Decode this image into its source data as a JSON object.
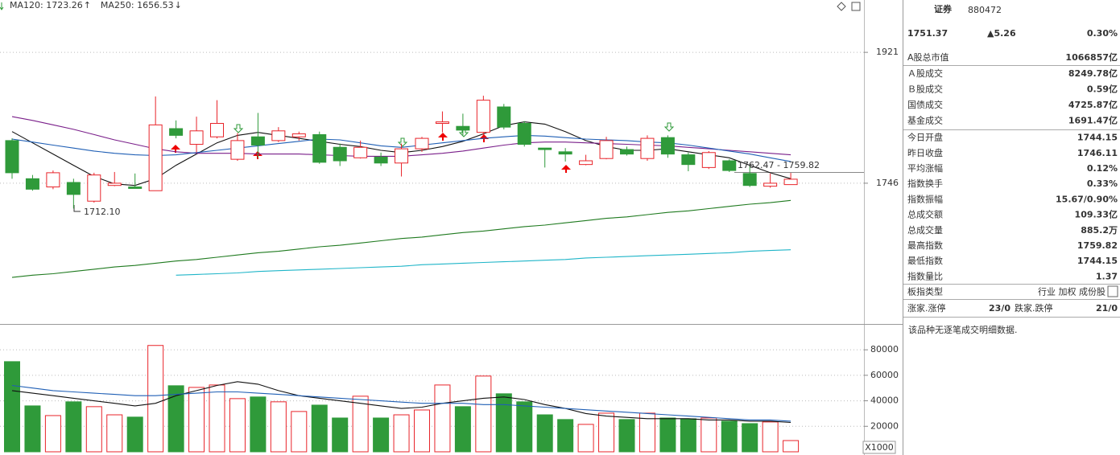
{
  "chart_data": [
    {
      "type": "candlestick",
      "up_color": "#e8242a",
      "down_color": "#2f9a3a",
      "ylim": [
        1561,
        1991
      ],
      "yticks": [
        1746,
        1921
      ],
      "grid": true,
      "open": [
        1803,
        1752,
        1741,
        1747,
        1722,
        1743,
        1741,
        1736,
        1819,
        1798,
        1808,
        1778,
        1808,
        1803,
        1808,
        1811,
        1794,
        1780,
        1781,
        1773,
        1792,
        1826,
        1822,
        1814,
        1848,
        1826,
        1793,
        1788,
        1771,
        1779,
        1791,
        1779,
        1807,
        1784,
        1767,
        1776,
        1759,
        1742,
        1744.15
      ],
      "high": [
        1806,
        1757,
        1763,
        1752,
        1760,
        1761,
        1759,
        1862,
        1830,
        1835,
        1857,
        1813,
        1840,
        1821,
        1815,
        1815,
        1799,
        1803,
        1787,
        1799,
        1808,
        1842,
        1839,
        1863,
        1852,
        1829,
        1793,
        1793,
        1784,
        1808,
        1795,
        1810,
        1810,
        1787,
        1789,
        1778,
        1770,
        1759,
        1759.82
      ],
      "low": [
        1752,
        1736,
        1738,
        1712.1,
        1720,
        1742,
        1739,
        1737,
        1806,
        1787,
        1806,
        1776,
        1780,
        1801,
        1803,
        1772,
        1769,
        1779,
        1769,
        1755,
        1788,
        1814,
        1810,
        1810,
        1818,
        1795,
        1767,
        1775,
        1770,
        1778,
        1783,
        1776,
        1780,
        1762,
        1765,
        1761,
        1741,
        1740,
        1744.15
      ],
      "close": [
        1760,
        1738,
        1760,
        1731,
        1757,
        1746,
        1739,
        1824,
        1810,
        1816,
        1826,
        1803,
        1797,
        1816,
        1812,
        1774,
        1776,
        1794,
        1773,
        1792,
        1806,
        1828,
        1817,
        1857,
        1821,
        1798,
        1791,
        1785,
        1776,
        1803,
        1785,
        1806,
        1785,
        1771,
        1787,
        1763,
        1743,
        1746,
        1751.37
      ],
      "series": [
        {
          "name": "MA120: 1723.26",
          "trend": "↑",
          "trend_color": "#e8242a",
          "label_color": "#333333",
          "color": "#1f7a1f",
          "values": [
            1620,
            1623,
            1625,
            1628,
            1631,
            1634,
            1636,
            1639,
            1642,
            1644,
            1647,
            1650,
            1653,
            1655,
            1658,
            1661,
            1663,
            1666,
            1669,
            1672,
            1674,
            1677,
            1680,
            1682,
            1685,
            1688,
            1690,
            1693,
            1696,
            1699,
            1701,
            1704,
            1707,
            1709,
            1712,
            1715,
            1718,
            1720,
            1723
          ]
        },
        {
          "name": "MA250: 1656.53",
          "trend": "↓",
          "trend_color": "#2f9a3a",
          "label_color": "#1fb5c8",
          "color": "#1fb5c8",
          "values": [
            null,
            null,
            null,
            null,
            null,
            null,
            null,
            null,
            1623,
            1624,
            1625,
            1626,
            1628,
            1629,
            1630,
            1631,
            1632,
            1633,
            1634,
            1635,
            1637,
            1638,
            1639,
            1640,
            1641,
            1642,
            1643,
            1644,
            1646,
            1647,
            1648,
            1649,
            1650,
            1651,
            1652,
            1653,
            1655,
            1656,
            1657
          ]
        },
        {
          "color": "#111111",
          "values": [
            1815,
            1800,
            1785,
            1770,
            1755,
            1745,
            1743,
            1752,
            1770,
            1785,
            1800,
            1810,
            1814,
            1810,
            1806,
            1802,
            1798,
            1795,
            1790,
            1787,
            1790,
            1795,
            1802,
            1812,
            1823,
            1828,
            1825,
            1815,
            1803,
            1795,
            1790,
            1790,
            1792,
            1788,
            1784,
            1780,
            1770,
            1760,
            1752
          ]
        },
        {
          "color": "#7a1f8a",
          "values": [
            1835,
            1830,
            1824,
            1818,
            1811,
            1804,
            1798,
            1792,
            1788,
            1786,
            1786,
            1786,
            1785,
            1785,
            1785,
            1784,
            1783,
            1782,
            1782,
            1782,
            1784,
            1786,
            1789,
            1793,
            1797,
            1800,
            1801,
            1801,
            1800,
            1799,
            1798,
            1797,
            1796,
            1794,
            1792,
            1790,
            1788,
            1786,
            1784
          ]
        },
        {
          "color": "#1f5fb5",
          "values": [
            1805,
            1801,
            1797,
            1793,
            1789,
            1786,
            1784,
            1783,
            1784,
            1787,
            1790,
            1793,
            1796,
            1799,
            1802,
            1805,
            1804,
            1800,
            1796,
            1794,
            1797,
            1800,
            1803,
            1806,
            1808,
            1810,
            1809,
            1807,
            1805,
            1804,
            1803,
            1801,
            1800,
            1797,
            1793,
            1789,
            1785,
            1780,
            1775
          ]
        }
      ],
      "annotations": [
        "1712.10",
        "1762.47 - 1759.82"
      ]
    },
    {
      "type": "bar",
      "up_color": "#e8242a",
      "down_color": "#2f9a3a",
      "ylim": [
        0,
        99000
      ],
      "yticks": [
        20000,
        40000,
        60000,
        80000
      ],
      "grid": true,
      "unit_label": "X1000",
      "values": [
        70700,
        36000,
        28400,
        39200,
        35400,
        29000,
        27200,
        83400,
        51800,
        50500,
        52400,
        41700,
        43000,
        39200,
        31600,
        36600,
        26500,
        43600,
        26500,
        29000,
        32800,
        52400,
        35400,
        59400,
        45500,
        39200,
        29000,
        25300,
        21500,
        30300,
        25300,
        30300,
        26500,
        25900,
        26500,
        24000,
        22100,
        23400,
        8800
      ],
      "series": [
        {
          "color": "#111111",
          "values": [
            48000,
            46000,
            44000,
            42000,
            40000,
            38000,
            36000,
            38000,
            44000,
            48000,
            52000,
            55000,
            53000,
            48000,
            44000,
            42000,
            40000,
            38000,
            36000,
            34000,
            35000,
            38000,
            40000,
            42000,
            43000,
            41000,
            37000,
            34000,
            30000,
            28000,
            27000,
            26000,
            26000,
            26000,
            25000,
            25000,
            24000,
            24000,
            23000
          ]
        },
        {
          "color": "#1f5fb5",
          "values": [
            52000,
            50000,
            48000,
            47000,
            46000,
            45000,
            44000,
            44000,
            45000,
            46000,
            47000,
            47000,
            46000,
            45000,
            44000,
            43000,
            42000,
            41000,
            40000,
            39000,
            38000,
            38000,
            38000,
            37000,
            37000,
            36000,
            35000,
            34000,
            33000,
            32000,
            31000,
            30000,
            29000,
            28000,
            27000,
            26000,
            25000,
            25000,
            24000
          ]
        }
      ]
    }
  ],
  "quote_panel": {
    "name": "证券",
    "code": "880472",
    "price": "1751.37",
    "change": "▲5.26",
    "change_pct": "0.30%",
    "groups": [
      [
        {
          "label": "A股总市值",
          "value": "1066857亿",
          "color": "#000"
        }
      ],
      [
        {
          "label": "Ａ股成交",
          "value": "8249.78亿",
          "color": "#000"
        },
        {
          "label": "Ｂ股成交",
          "value": "0.59亿",
          "color": "#000"
        },
        {
          "label": "国债成交",
          "value": "4725.87亿",
          "color": "#000"
        },
        {
          "label": "基金成交",
          "value": "1691.47亿",
          "color": "#000"
        }
      ],
      [
        {
          "label": "今日开盘",
          "value": "1744.15",
          "color": "#2f9a3a"
        },
        {
          "label": "昨日收盘",
          "value": "1746.11",
          "color": "#000"
        },
        {
          "label": "平均涨幅",
          "value": "0.12%",
          "color": "#e8242a"
        },
        {
          "label": "指数换手",
          "value": "0.33%",
          "color": "#000"
        },
        {
          "label": "指数振幅",
          "value": "15.67/0.90%",
          "color": "#000"
        },
        {
          "label": "总成交额",
          "value": "109.33亿",
          "color": "#000"
        },
        {
          "label": "总成交量",
          "value": "885.2万",
          "color": "#000"
        },
        {
          "label": "最高指数",
          "value": "1759.82",
          "color": "#e8242a"
        },
        {
          "label": "最低指数",
          "value": "1744.15",
          "color": "#2f9a3a"
        },
        {
          "label": "指数量比",
          "value": "1.37",
          "color": "#e8242a"
        }
      ],
      [
        {
          "label": "板指类型",
          "value": "行业 加权 成份股",
          "color": "#555"
        }
      ]
    ],
    "breadth": {
      "up_label": "涨家.涨停",
      "up_value": "23/0",
      "down_label": "跌家.跌停",
      "down_value": "21/0"
    },
    "note": "该品种无逐笔成交明细数据."
  }
}
